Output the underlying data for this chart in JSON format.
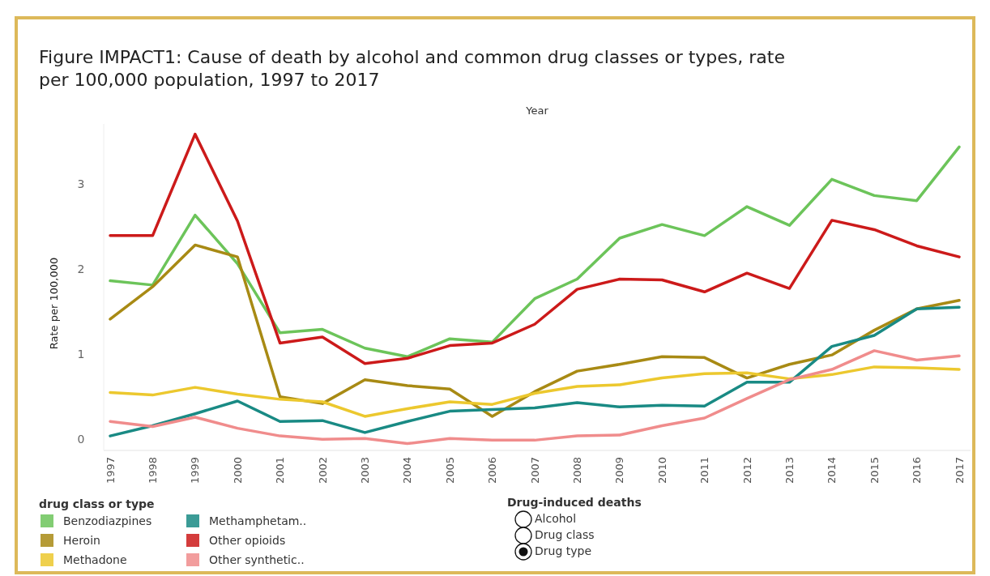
{
  "chart_data": {
    "type": "line",
    "title": "Figure IMPACT1: Cause of death by alcohol and common drug classes or types, rate per 100,000 population, 1997 to 2017",
    "xlabel": "Year",
    "ylabel": "Rate per 100,000",
    "legend_title": "drug class or type",
    "legend": "bottom left",
    "categories": [
      "1997",
      "1998",
      "1999",
      "2000",
      "2001",
      "2002",
      "2003",
      "2004",
      "2005",
      "2006",
      "2007",
      "2008",
      "2009",
      "2010",
      "2011",
      "2012",
      "2013",
      "2014",
      "2015",
      "2016",
      "2017"
    ],
    "ylim": [
      -0.13,
      3.7
    ],
    "yticks": [
      0,
      1,
      2,
      3
    ],
    "series": [
      {
        "name": "Benzodiazpines",
        "color": "#6cc45a",
        "values": [
          1.86,
          1.81,
          2.63,
          2.06,
          1.25,
          1.29,
          1.07,
          0.97,
          1.18,
          1.14,
          1.65,
          1.88,
          2.36,
          2.52,
          2.39,
          2.73,
          2.51,
          3.05,
          2.86,
          2.8,
          3.43
        ]
      },
      {
        "name": "Heroin",
        "color": "#a88a14",
        "values": [
          1.41,
          1.79,
          2.28,
          2.14,
          0.5,
          0.42,
          0.7,
          0.63,
          0.59,
          0.27,
          0.56,
          0.8,
          0.88,
          0.97,
          0.96,
          0.72,
          0.88,
          0.99,
          1.28,
          1.53,
          1.63
        ]
      },
      {
        "name": "Methadone",
        "color": "#ecc82e",
        "values": [
          0.55,
          0.52,
          0.61,
          0.53,
          0.47,
          0.44,
          0.27,
          0.36,
          0.44,
          0.41,
          0.54,
          0.62,
          0.64,
          0.72,
          0.77,
          0.78,
          0.71,
          0.76,
          0.85,
          0.84,
          0.82
        ]
      },
      {
        "name": "Methamphetam..",
        "color": "#198a84",
        "values": [
          0.04,
          0.16,
          0.3,
          0.45,
          0.21,
          0.22,
          0.08,
          0.21,
          0.33,
          0.35,
          0.37,
          0.43,
          0.38,
          0.4,
          0.39,
          0.67,
          0.67,
          1.09,
          1.22,
          1.53,
          1.55
        ]
      },
      {
        "name": "Other opioids",
        "color": "#cc1a1a",
        "values": [
          2.39,
          2.39,
          3.58,
          2.56,
          1.13,
          1.2,
          0.89,
          0.95,
          1.1,
          1.13,
          1.35,
          1.76,
          1.88,
          1.87,
          1.73,
          1.95,
          1.77,
          2.57,
          2.46,
          2.27,
          2.14
        ]
      },
      {
        "name": "Other synthetic..",
        "color": "#f08c8c",
        "values": [
          0.21,
          0.15,
          0.26,
          0.13,
          0.04,
          0.0,
          0.01,
          -0.05,
          0.01,
          -0.01,
          -0.01,
          0.04,
          0.05,
          0.16,
          0.25,
          0.48,
          0.7,
          0.82,
          1.04,
          0.93,
          0.98
        ]
      }
    ],
    "annotations": [
      "Drug-induced deaths",
      "Alcohol",
      "Drug class",
      "Drug type"
    ]
  }
}
